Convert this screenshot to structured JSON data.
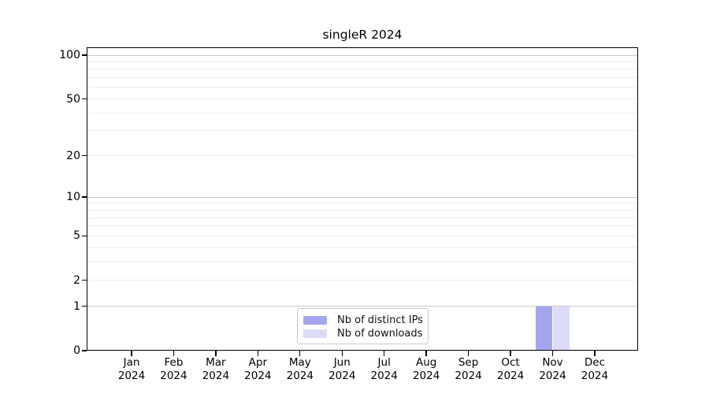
{
  "chart_data": {
    "type": "bar",
    "title": "singleR 2024",
    "categories": [
      "Jan 2024",
      "Feb 2024",
      "Mar 2024",
      "Apr 2024",
      "May 2024",
      "Jun 2024",
      "Jul 2024",
      "Aug 2024",
      "Sep 2024",
      "Oct 2024",
      "Nov 2024",
      "Dec 2024"
    ],
    "series": [
      {
        "name": "Nb of distinct IPs",
        "color": "#a5a5f0",
        "values": [
          0,
          0,
          0,
          0,
          0,
          0,
          0,
          0,
          0,
          0,
          1,
          0
        ]
      },
      {
        "name": "Nb of downloads",
        "color": "#dcdcf8",
        "values": [
          0,
          0,
          0,
          0,
          0,
          0,
          0,
          0,
          0,
          0,
          1,
          0
        ]
      }
    ],
    "y_axis": {
      "scale": "symlog",
      "ticks": [
        0,
        1,
        2,
        5,
        10,
        20,
        50,
        100
      ],
      "major_gridlines": [
        1,
        10,
        100
      ],
      "minor_gridlines": [
        2,
        3,
        4,
        5,
        6,
        7,
        8,
        9,
        20,
        30,
        40,
        50,
        60,
        70,
        80,
        90
      ],
      "ylim": [
        0,
        110
      ]
    },
    "x_axis": {
      "ylabel": "",
      "tick_line2": "2024"
    },
    "legend": {
      "position": "bottom-center",
      "entries": [
        "Nb of distinct IPs",
        "Nb of downloads"
      ]
    },
    "colors": {
      "distinct_ips": "#a5a5f0",
      "downloads": "#dcdcf8",
      "grid_major": "#c8c8c8",
      "grid_minor": "#ececec",
      "axis": "#000000",
      "background": "#ffffff"
    }
  }
}
